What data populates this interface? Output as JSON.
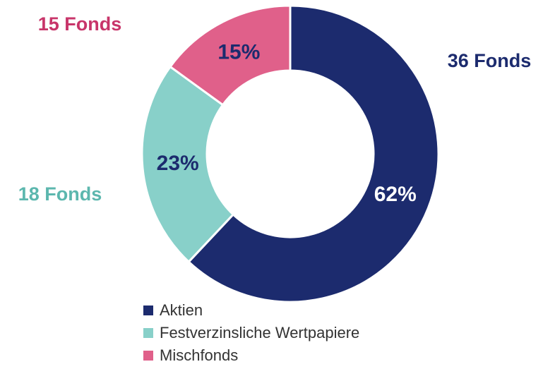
{
  "chart_data": {
    "type": "donut",
    "categories": [
      "Aktien",
      "Festverzinsliche Wertpapiere",
      "Mischfonds"
    ],
    "values": [
      62,
      23,
      15
    ],
    "value_labels": [
      "62%",
      "23%",
      "15%"
    ],
    "fund_labels": [
      "36 Fonds",
      "18 Fonds",
      "15 Fonds"
    ],
    "colors": [
      "#1c2b6e",
      "#88d0c9",
      "#e0608a"
    ],
    "legend": "bottom"
  }
}
